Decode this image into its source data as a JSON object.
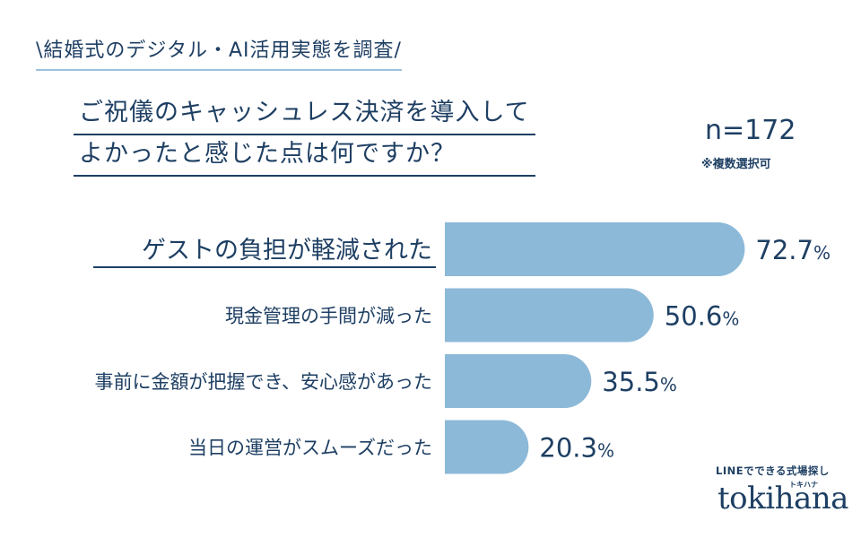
{
  "header": {
    "survey_tag": "\\結婚式のデジタル・AI活用実態を調査/",
    "question_line1": "ご祝儀のキャッシュレス決済を導入して",
    "question_line2": "よかったと感じた点は何ですか？",
    "sample_size": "n=172",
    "note": "※複数選択可"
  },
  "chart_data": {
    "type": "bar",
    "orientation": "horizontal",
    "categories": [
      "ゲストの負担が軽減された",
      "現金管理の手間が減った",
      "事前に金額が把握でき、安心感があった",
      "当日の運営がスムーズだった"
    ],
    "values": [
      72.7,
      50.6,
      35.5,
      20.3
    ],
    "value_labels": [
      "72.7%",
      "50.6%",
      "35.5%",
      "20.3%"
    ],
    "highlighted_category_index": 0,
    "bar_color": "#8db9d8",
    "text_color": "#1e3f63",
    "xlim": [
      0,
      100
    ],
    "grid": false,
    "legend": "none"
  },
  "brand": {
    "tagline": "LINEでできる式場探し",
    "kana": "トキハナ",
    "logo": "tokihana"
  }
}
